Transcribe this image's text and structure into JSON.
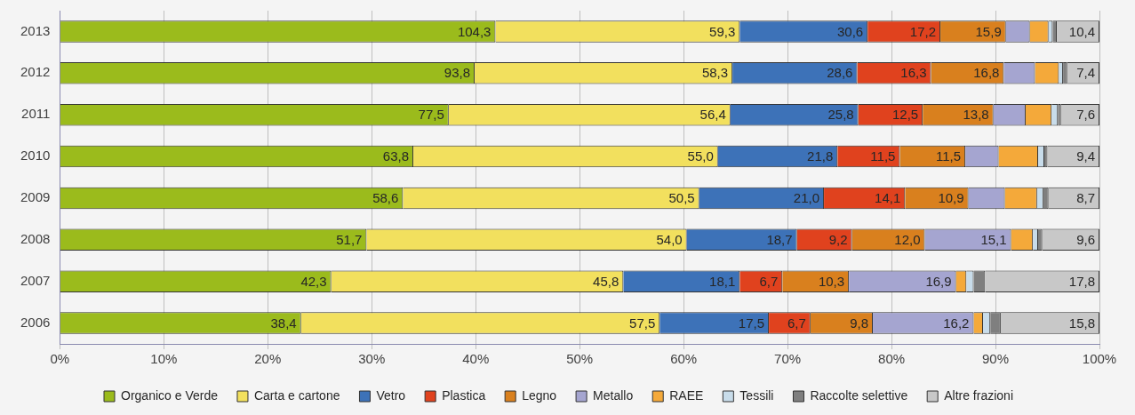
{
  "chart_data": {
    "type": "bar",
    "orientation": "horizontal",
    "stacked": true,
    "categories": [
      "2013",
      "2012",
      "2011",
      "2010",
      "2009",
      "2008",
      "2007",
      "2006"
    ],
    "xlim": [
      0,
      100
    ],
    "xticks": [
      {
        "value": 0,
        "label": "0%"
      },
      {
        "value": 10,
        "label": "10%"
      },
      {
        "value": 20,
        "label": "20%"
      },
      {
        "value": 30,
        "label": "30%"
      },
      {
        "value": 40,
        "label": "40%"
      },
      {
        "value": 50,
        "label": "50%"
      },
      {
        "value": 60,
        "label": "60%"
      },
      {
        "value": 70,
        "label": "70%"
      },
      {
        "value": 80,
        "label": "80%"
      },
      {
        "value": 90,
        "label": "90%"
      },
      {
        "value": 100,
        "label": "100%"
      }
    ],
    "grid": "x",
    "legend": "bottom",
    "series": [
      {
        "name": "Organico e Verde",
        "color": "#9bbb1c",
        "values": [
          41.9,
          39.9,
          37.4,
          34.0,
          33.0,
          29.5,
          26.1,
          23.2
        ]
      },
      {
        "name": "Carta e cartone",
        "color": "#f2e05e",
        "values": [
          23.5,
          24.8,
          27.1,
          29.3,
          28.5,
          30.8,
          28.1,
          34.5
        ]
      },
      {
        "name": "Vetro",
        "color": "#3d72b8",
        "values": [
          12.3,
          12.0,
          12.3,
          11.5,
          12.0,
          10.6,
          11.2,
          10.5
        ]
      },
      {
        "name": "Plastica",
        "color": "#e0421e",
        "values": [
          7.0,
          7.1,
          6.2,
          6.0,
          7.8,
          5.3,
          4.1,
          4.0
        ]
      },
      {
        "name": "Legno",
        "color": "#d9801e",
        "values": [
          6.3,
          7.0,
          6.8,
          6.3,
          6.1,
          7.0,
          6.4,
          6.0
        ]
      },
      {
        "name": "Metallo",
        "color": "#a5a5d0",
        "values": [
          2.3,
          3.0,
          3.1,
          3.2,
          3.5,
          8.3,
          10.3,
          9.7
        ]
      },
      {
        "name": "RAEE",
        "color": "#f4a93a",
        "values": [
          1.8,
          2.3,
          2.5,
          3.8,
          3.1,
          2.1,
          1.0,
          0.9
        ]
      },
      {
        "name": "Tessili",
        "color": "#c8dcea",
        "values": [
          0.4,
          0.4,
          0.6,
          0.6,
          0.6,
          0.5,
          0.7,
          0.7
        ]
      },
      {
        "name": "Raccolte selettive",
        "color": "#7f7f7f",
        "values": [
          0.4,
          0.4,
          0.3,
          0.3,
          0.5,
          0.4,
          1.1,
          1.0
        ]
      },
      {
        "name": "Altre frazioni",
        "color": "#c8c8c8",
        "values": [
          4.1,
          3.1,
          3.7,
          5.0,
          4.9,
          5.5,
          11.0,
          9.5
        ]
      }
    ],
    "annotations": [
      {
        "text": "104,3",
        "x": 41.9,
        "y": "2013"
      },
      {
        "text": "59,3",
        "x": 65.4,
        "y": "2013"
      },
      {
        "text": "30,6",
        "x": 77.7,
        "y": "2013"
      },
      {
        "text": "17,2",
        "x": 84.7,
        "y": "2013"
      },
      {
        "text": "15,9",
        "x": 91.0,
        "y": "2013"
      },
      {
        "text": "10,4",
        "x": 100,
        "y": "2013"
      },
      {
        "text": "93,8",
        "x": 39.9,
        "y": "2012"
      },
      {
        "text": "58,3",
        "x": 64.7,
        "y": "2012"
      },
      {
        "text": "28,6",
        "x": 76.7,
        "y": "2012"
      },
      {
        "text": "16,3",
        "x": 83.8,
        "y": "2012"
      },
      {
        "text": "16,8",
        "x": 90.8,
        "y": "2012"
      },
      {
        "text": "7,4",
        "x": 100,
        "y": "2012"
      },
      {
        "text": "77,5",
        "x": 37.4,
        "y": "2011"
      },
      {
        "text": "56,4",
        "x": 64.5,
        "y": "2011"
      },
      {
        "text": "25,8",
        "x": 76.8,
        "y": "2011"
      },
      {
        "text": "12,5",
        "x": 83.0,
        "y": "2011"
      },
      {
        "text": "13,8",
        "x": 89.8,
        "y": "2011"
      },
      {
        "text": "7,6",
        "x": 100,
        "y": "2011"
      },
      {
        "text": "63,8",
        "x": 34.0,
        "y": "2010"
      },
      {
        "text": "55,0",
        "x": 63.3,
        "y": "2010"
      },
      {
        "text": "21,8",
        "x": 74.8,
        "y": "2010"
      },
      {
        "text": "11,5",
        "x": 80.8,
        "y": "2010"
      },
      {
        "text": "11,5",
        "x": 87.1,
        "y": "2010"
      },
      {
        "text": "9,4",
        "x": 100,
        "y": "2010"
      },
      {
        "text": "58,6",
        "x": 33.0,
        "y": "2009"
      },
      {
        "text": "50,5",
        "x": 61.5,
        "y": "2009"
      },
      {
        "text": "21,0",
        "x": 73.5,
        "y": "2009"
      },
      {
        "text": "14,1",
        "x": 81.3,
        "y": "2009"
      },
      {
        "text": "10,9",
        "x": 87.4,
        "y": "2009"
      },
      {
        "text": "8,7",
        "x": 100,
        "y": "2009"
      },
      {
        "text": "51,7",
        "x": 29.5,
        "y": "2008"
      },
      {
        "text": "54,0",
        "x": 60.3,
        "y": "2008"
      },
      {
        "text": "18,7",
        "x": 70.9,
        "y": "2008"
      },
      {
        "text": "9,2",
        "x": 76.2,
        "y": "2008"
      },
      {
        "text": "12,0",
        "x": 83.2,
        "y": "2008"
      },
      {
        "text": "15,1",
        "x": 91.5,
        "y": "2008"
      },
      {
        "text": "9,6",
        "x": 100,
        "y": "2008"
      },
      {
        "text": "42,3",
        "x": 26.1,
        "y": "2007"
      },
      {
        "text": "45,8",
        "x": 54.2,
        "y": "2007"
      },
      {
        "text": "18,1",
        "x": 65.4,
        "y": "2007"
      },
      {
        "text": "6,7",
        "x": 69.5,
        "y": "2007"
      },
      {
        "text": "10,3",
        "x": 75.9,
        "y": "2007"
      },
      {
        "text": "16,9",
        "x": 86.2,
        "y": "2007"
      },
      {
        "text": "17,8",
        "x": 100,
        "y": "2007"
      },
      {
        "text": "38,4",
        "x": 23.2,
        "y": "2006"
      },
      {
        "text": "57,5",
        "x": 57.7,
        "y": "2006"
      },
      {
        "text": "17,5",
        "x": 68.2,
        "y": "2006"
      },
      {
        "text": "6,7",
        "x": 72.2,
        "y": "2006"
      },
      {
        "text": "9,8",
        "x": 78.2,
        "y": "2006"
      },
      {
        "text": "16,2",
        "x": 87.9,
        "y": "2006"
      },
      {
        "text": "15,8",
        "x": 100,
        "y": "2006"
      }
    ]
  }
}
